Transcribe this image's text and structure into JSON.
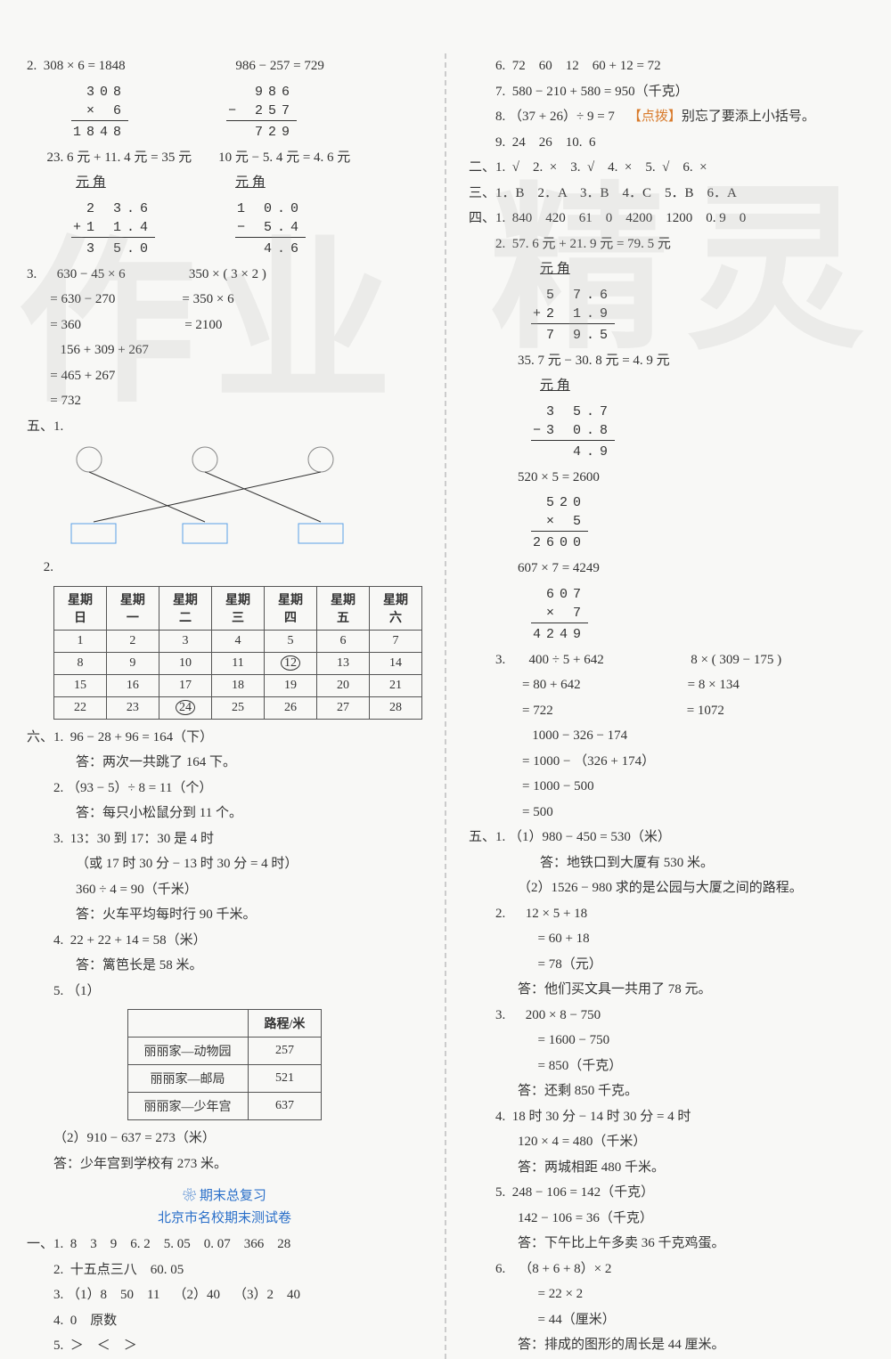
{
  "left": {
    "p2_header": "2.  308 × 6 = 1848                                 986 − 257 = 729",
    "calc1": {
      "r1": "308",
      "r2": "×  6",
      "r3": "1848"
    },
    "calc2": {
      "r1": "986",
      "r2": "− 257",
      "r3": "729"
    },
    "p2_line2": "      23. 6 元 + 11. 4 元 = 35 元        10 元 − 5. 4 元 = 4. 6 元",
    "yuanjiao": "元 角",
    "calc3": {
      "r1": "2 3.6",
      "r2": "+1 1.4",
      "r3": "3 5.0"
    },
    "calc4": {
      "r1": "1 0.0",
      "r2": "−  5.4",
      "r3": "  4.6"
    },
    "p3": "3.      630 − 45 × 6                   350 × ( 3 × 2 )",
    "p3l2": "       = 630 − 270                    = 350 × 6",
    "p3l3": "       = 360                               = 2100",
    "p3l4": "          156 + 309 + 267",
    "p3l5": "       = 465 + 267",
    "p3l6": "       = 732",
    "sec5": "五、1.",
    "p52_label": "     2.",
    "calendar": {
      "headers": [
        "星期日",
        "星期一",
        "星期二",
        "星期三",
        "星期四",
        "星期五",
        "星期六"
      ],
      "rows": [
        [
          "1",
          "2",
          "3",
          "4",
          "5",
          "6",
          "7"
        ],
        [
          "8",
          "9",
          "10",
          "11",
          "12",
          "13",
          "14"
        ],
        [
          "15",
          "16",
          "17",
          "18",
          "19",
          "20",
          "21"
        ],
        [
          "22",
          "23",
          "24",
          "25",
          "26",
          "27",
          "28"
        ]
      ],
      "circled": [
        "12",
        "24"
      ]
    },
    "sec6_1": "六、1.  96 − 28 + 96 = 164（下）",
    "sec6_1a": "答：两次一共跳了 164 下。",
    "sec6_2": "2. （93 − 5）÷ 8 = 11（个）",
    "sec6_2a": "答：每只小松鼠分到 11 个。",
    "sec6_3": "3.  13：30 到 17：30 是 4 时",
    "sec6_3b": "（或 17 时 30 分 − 13 时 30 分 = 4 时）",
    "sec6_3c": "360 ÷ 4 = 90（千米）",
    "sec6_3a": "答：火车平均每时行 90 千米。",
    "sec6_4": "4.  22 + 22 + 14 = 58（米）",
    "sec6_4a": "答：篱笆长是 58 米。",
    "sec6_5": "5. （1）",
    "dist_table": {
      "header": [
        "",
        "路程/米"
      ],
      "rows": [
        [
          "丽丽家—动物园",
          "257"
        ],
        [
          "丽丽家—邮局",
          "521"
        ],
        [
          "丽丽家—少年宫",
          "637"
        ]
      ]
    },
    "sec6_5b": "（2）910 − 637 = 273（米）",
    "sec6_5a": "答：少年宫到学校有 273 米。",
    "review_title": "期末总复习",
    "review_sub": "北京市名校期末测试卷",
    "rev1": "一、1.  8    3    9    6. 2    5. 05    0. 07    366    28",
    "rev2": "2.  十五点三八    60. 05",
    "rev3": "3. （1）8    50    11    （2）40    （3）2    40",
    "rev4": "4.  0    原数",
    "rev5": "5.  ＞    ＜    ＞"
  },
  "right": {
    "l6": "6.  72    60    12    60 + 12 = 72",
    "l7": "7.  580 − 210 + 580 = 950（千克）",
    "l8a": "8. （37 + 26）÷ 9 = 7    ",
    "l8hint": "【点拨】",
    "l8b": "别忘了要添上小括号。",
    "l9": "9.  24    26    10.  6",
    "sec2": "二、1.  √    2.  ×    3.  √    4.  ×    5.  √    6.  ×",
    "sec3": "三、1．B    2．A    3．B    4．C    5．B    6．A",
    "sec4_1": "四、1.  840    420    61    0    4200    1200    0. 9    0",
    "sec4_2": "2.  57. 6 元 + 21. 9 元 = 79. 5 元",
    "yuanjiao": "元 角",
    "calcA": {
      "r1": "5 7.6",
      "r2": "+2 1.9",
      "r3": "7 9.5"
    },
    "sec4_2b": "35. 7 元 − 30. 8 元 = 4. 9 元",
    "calcB": {
      "r1": "3 5.7",
      "r2": "−3 0.8",
      "r3": "  4.9"
    },
    "sec4_2c": "520 × 5 = 2600",
    "calcC": {
      "r1": "520",
      "r2": "×  5",
      "r3": "2600"
    },
    "sec4_2d": "607 × 7 = 4249",
    "calcD": {
      "r1": "607",
      "r2": "×  7",
      "r3": "4249"
    },
    "sec4_3a": "3.       400 ÷ 5 + 642                          8 × ( 309 − 175 )",
    "sec4_3b": "        = 80 + 642                                = 8 × 134",
    "sec4_3c": "        = 722                                        = 1072",
    "sec4_3d": "           1000 − 326 − 174",
    "sec4_3e": "        = 1000 − （326 + 174）",
    "sec4_3f": "        = 1000 − 500",
    "sec4_3g": "        = 500",
    "sec5_1a": "五、1. （1）980 − 450 = 530（米）",
    "sec5_1b": "答：地铁口到大厦有 530 米。",
    "sec5_1c": "（2）1526 − 980 求的是公园与大厦之间的路程。",
    "sec5_2a": "2.      12 × 5 + 18",
    "sec5_2b": "      = 60 + 18",
    "sec5_2c": "      = 78（元）",
    "sec5_2d": "答：他们买文具一共用了 78 元。",
    "sec5_3a": "3.      200 × 8 − 750",
    "sec5_3b": "      = 1600 − 750",
    "sec5_3c": "      = 850（千克）",
    "sec5_3d": "答：还剩 850 千克。",
    "sec5_4a": "4.  18 时 30 分 − 14 时 30 分 = 4 时",
    "sec5_4b": "120 × 4 = 480（千米）",
    "sec5_4c": "答：两城相距 480 千米。",
    "sec5_5a": "5.  248 − 106 = 142（千克）",
    "sec5_5b": "142 − 106 = 36（千克）",
    "sec5_5c": "答：下午比上午多卖 36 千克鸡蛋。",
    "sec5_6a": "6.    （8 + 6 + 8）× 2",
    "sec5_6b": "      = 22 × 2",
    "sec5_6c": "      = 44（厘米）",
    "sec5_6d": "答：排成的图形的周长是 44 厘米。"
  },
  "watermark": {
    "c1": "作",
    "c2": "业",
    "c3": "精",
    "c4": "灵"
  }
}
